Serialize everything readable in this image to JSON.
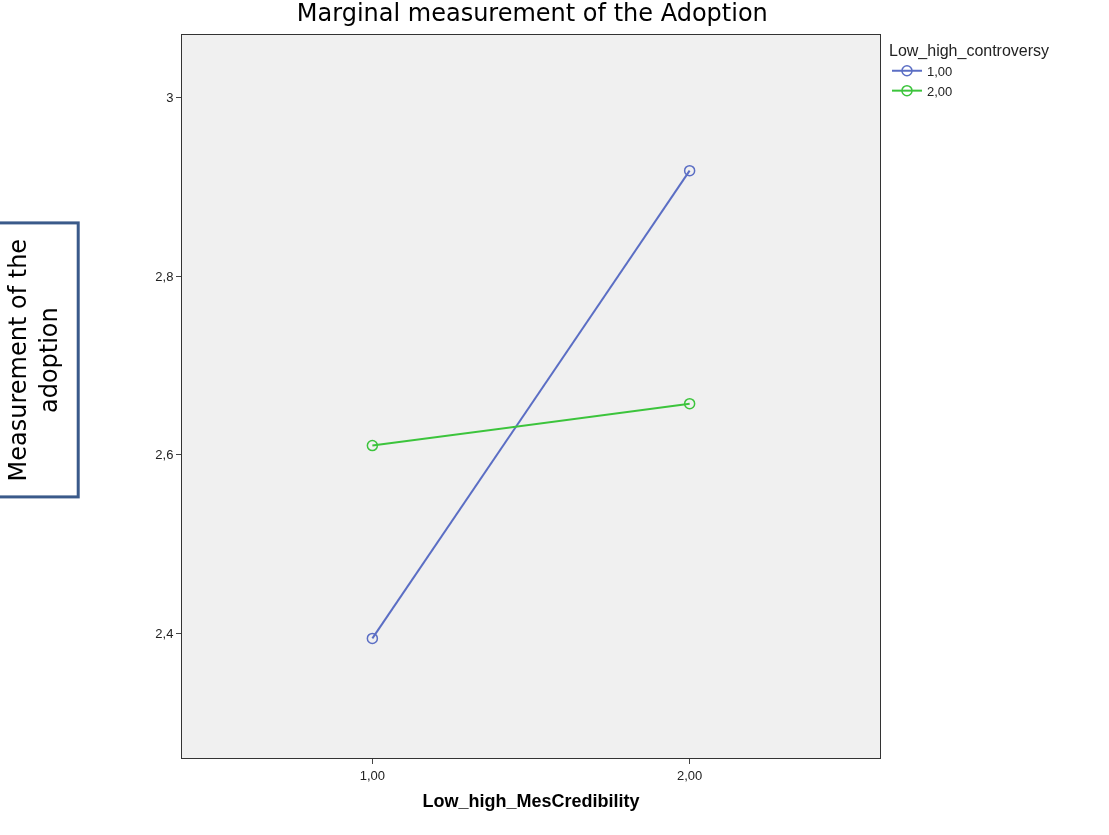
{
  "chart_data": {
    "type": "line",
    "title": "Marginal measurement of the Adoption",
    "xlabel": "Low_high_MesCredibility",
    "ylabel": "Measurement of the adoption",
    "legend_title": "Low_high_controversy",
    "categories": [
      "1,00",
      "2,00"
    ],
    "series": [
      {
        "name": "1,00",
        "color": "#5b6ec4",
        "values": [
          2.394,
          2.918
        ]
      },
      {
        "name": "2,00",
        "color": "#3cc43c",
        "values": [
          2.61,
          2.657
        ]
      }
    ],
    "ylim": [
      2.26,
      3.07
    ],
    "yticks": [
      {
        "value": 2.4,
        "label": "2,4"
      },
      {
        "value": 2.6,
        "label": "2,6"
      },
      {
        "value": 2.8,
        "label": "2,8"
      },
      3
    ],
    "marker": "circle",
    "grid": false,
    "legend": "top right"
  }
}
